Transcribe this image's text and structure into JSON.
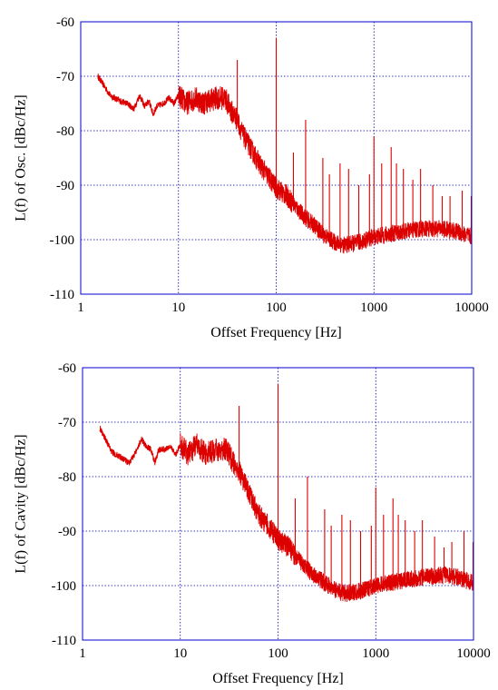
{
  "colors": {
    "frame": "#0000cc",
    "grid": "#0000aa",
    "trace": "#dd0000",
    "text": "#000000"
  },
  "chart_data": [
    {
      "type": "line",
      "xlabel": "Offset Frequency [Hz]",
      "ylabel": "L(f) of Osc. [dBc/Hz]",
      "xscale": "log",
      "xlim": [
        1,
        10000
      ],
      "ylim": [
        -110,
        -60
      ],
      "xticks": [
        1,
        10,
        100,
        1000,
        10000
      ],
      "xtick_labels": [
        "1",
        "10",
        "100",
        "1000",
        "10000"
      ],
      "yticks": [
        -60,
        -70,
        -80,
        -90,
        -100,
        -110
      ],
      "ytick_labels": [
        "-60",
        "-70",
        "-80",
        "-90",
        "-100",
        "-110"
      ],
      "grid": true,
      "series": [
        {
          "color": "#dd0000",
          "x": [
            1.5,
            2,
            2.5,
            3,
            3.5,
            4,
            4.5,
            5,
            5.5,
            6,
            7,
            8,
            9,
            10,
            12,
            15,
            18,
            20,
            25,
            30,
            35,
            40,
            45,
            50,
            60,
            70,
            80,
            100,
            130,
            150,
            200,
            250,
            300,
            400,
            500,
            700,
            1000,
            2000,
            3000,
            5000,
            7000,
            10000
          ],
          "y": [
            -70,
            -73.5,
            -74.5,
            -75,
            -76,
            -73.5,
            -75.5,
            -74.5,
            -77,
            -75.5,
            -75,
            -74,
            -75,
            -73.5,
            -75,
            -74,
            -75,
            -74.5,
            -74,
            -74,
            -76.5,
            -78,
            -80.5,
            -82,
            -84.5,
            -86.5,
            -88,
            -90.5,
            -92,
            -93.5,
            -96,
            -97.5,
            -99,
            -100.5,
            -101,
            -100.5,
            -99.5,
            -98.5,
            -98,
            -98,
            -98.5,
            -99.5
          ],
          "spikes": [
            {
              "x": 40,
              "y": -67
            },
            {
              "x": 100,
              "y": -63
            },
            {
              "x": 150,
              "y": -84
            },
            {
              "x": 200,
              "y": -78
            },
            {
              "x": 300,
              "y": -85
            },
            {
              "x": 350,
              "y": -88
            },
            {
              "x": 450,
              "y": -86
            },
            {
              "x": 550,
              "y": -87
            },
            {
              "x": 700,
              "y": -90
            },
            {
              "x": 900,
              "y": -88
            },
            {
              "x": 1000,
              "y": -81
            },
            {
              "x": 1200,
              "y": -86
            },
            {
              "x": 1500,
              "y": -83
            },
            {
              "x": 1700,
              "y": -86
            },
            {
              "x": 2000,
              "y": -87
            },
            {
              "x": 2500,
              "y": -89
            },
            {
              "x": 3000,
              "y": -87
            },
            {
              "x": 4000,
              "y": -90
            },
            {
              "x": 5000,
              "y": -92
            },
            {
              "x": 6000,
              "y": -92
            },
            {
              "x": 8000,
              "y": -91
            },
            {
              "x": 10000,
              "y": -92
            }
          ]
        }
      ]
    },
    {
      "type": "line",
      "xlabel": "Offset Frequency [Hz]",
      "ylabel": "L(f) of Cavity [dBc/Hz]",
      "xscale": "log",
      "xlim": [
        1,
        10000
      ],
      "ylim": [
        -110,
        -60
      ],
      "xticks": [
        1,
        10,
        100,
        1000,
        10000
      ],
      "xtick_labels": [
        "1",
        "10",
        "100",
        "1000",
        "10000"
      ],
      "yticks": [
        -60,
        -70,
        -80,
        -90,
        -100,
        -110
      ],
      "ytick_labels": [
        "-60",
        "-70",
        "-80",
        "-90",
        "-100",
        "-110"
      ],
      "grid": true,
      "series": [
        {
          "color": "#dd0000",
          "x": [
            1.5,
            2,
            2.5,
            3,
            3.5,
            4,
            4.5,
            5,
            5.5,
            6,
            7,
            8,
            9,
            10,
            12,
            15,
            18,
            20,
            25,
            30,
            35,
            40,
            45,
            50,
            60,
            70,
            80,
            100,
            130,
            150,
            200,
            250,
            300,
            400,
            500,
            700,
            1000,
            2000,
            3000,
            5000,
            7000,
            10000
          ],
          "y": [
            -71,
            -75.5,
            -76.5,
            -77.5,
            -75.5,
            -73,
            -74.5,
            -75,
            -77.5,
            -75,
            -75,
            -74.5,
            -76,
            -74,
            -76,
            -74,
            -76,
            -75.5,
            -75,
            -75,
            -77.5,
            -79,
            -81,
            -83,
            -86,
            -88,
            -89,
            -91.5,
            -93,
            -94.5,
            -97,
            -98.5,
            -99.5,
            -101,
            -101.5,
            -101,
            -100,
            -99,
            -98.5,
            -98,
            -98.5,
            -99.5
          ],
          "spikes": [
            {
              "x": 40,
              "y": -67
            },
            {
              "x": 100,
              "y": -63
            },
            {
              "x": 150,
              "y": -84
            },
            {
              "x": 200,
              "y": -80
            },
            {
              "x": 300,
              "y": -86
            },
            {
              "x": 350,
              "y": -89
            },
            {
              "x": 450,
              "y": -87
            },
            {
              "x": 550,
              "y": -88
            },
            {
              "x": 700,
              "y": -90
            },
            {
              "x": 900,
              "y": -89
            },
            {
              "x": 1000,
              "y": -82
            },
            {
              "x": 1200,
              "y": -87
            },
            {
              "x": 1500,
              "y": -84
            },
            {
              "x": 1700,
              "y": -87
            },
            {
              "x": 2000,
              "y": -88
            },
            {
              "x": 2500,
              "y": -90
            },
            {
              "x": 3000,
              "y": -88
            },
            {
              "x": 4000,
              "y": -91
            },
            {
              "x": 5000,
              "y": -93
            },
            {
              "x": 6000,
              "y": -92
            },
            {
              "x": 8000,
              "y": -90
            },
            {
              "x": 10000,
              "y": -92
            }
          ]
        }
      ]
    }
  ]
}
